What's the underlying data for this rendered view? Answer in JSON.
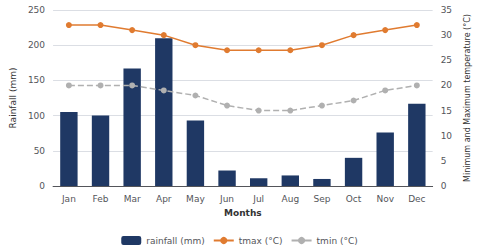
{
  "chart_data": {
    "type": "bar",
    "xlabel": "Months",
    "ylabel": "Rainfall (mm)",
    "y2label": "Minimum and Maximum temperature (°C)",
    "categories": [
      "Jan",
      "Feb",
      "Mar",
      "Apr",
      "May",
      "Jun",
      "Jul",
      "Aug",
      "Sep",
      "Oct",
      "Nov",
      "Dec"
    ],
    "series": [
      {
        "name": "rainfall (mm)",
        "type": "bar",
        "color": "#1F3864",
        "values": [
          105,
          100,
          167,
          210,
          93,
          22,
          11,
          15,
          10,
          40,
          76,
          117
        ]
      },
      {
        "name": "tmax (°C)",
        "type": "line",
        "axis": "y2",
        "color": "#E07B30",
        "marker": "circle",
        "line_style": "solid",
        "values": [
          32,
          32,
          31,
          30,
          28,
          27,
          27,
          27,
          28,
          30,
          31,
          32
        ]
      },
      {
        "name": "tmin (°C)",
        "type": "line",
        "axis": "y2",
        "color": "#B0B0B0",
        "marker": "circle",
        "line_style": "dashed",
        "values": [
          20,
          20,
          20,
          19,
          18,
          16,
          15,
          15,
          16,
          17,
          19,
          20
        ]
      }
    ],
    "ylim": [
      0,
      250
    ],
    "yticks": [
      0,
      50,
      100,
      150,
      200,
      250
    ],
    "y2lim": [
      0,
      35
    ],
    "y2ticks": [
      0,
      5,
      10,
      15,
      20,
      25,
      30,
      35
    ],
    "grid": true,
    "legend": "bottom"
  }
}
